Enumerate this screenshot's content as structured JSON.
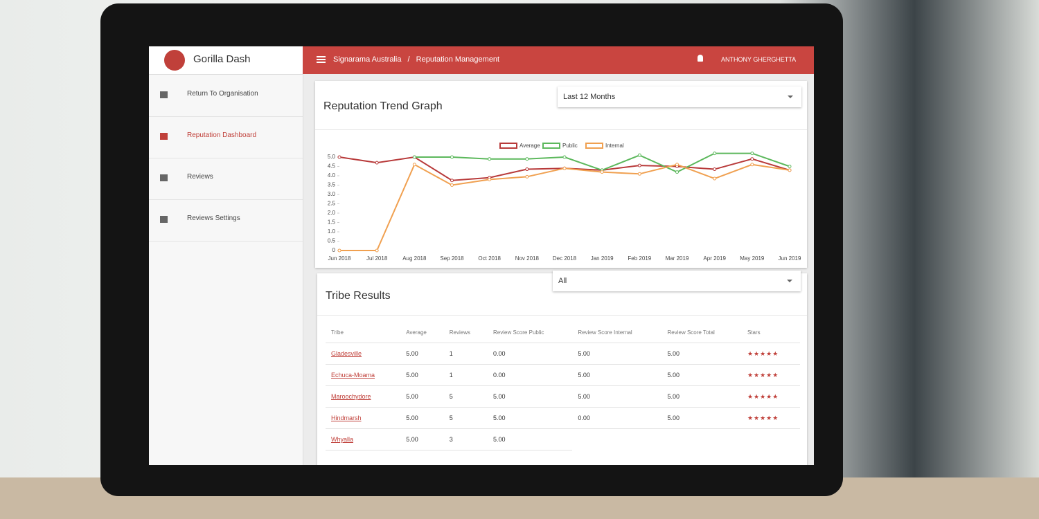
{
  "app": {
    "name": "Gorilla Dash"
  },
  "sidebar": {
    "items": [
      "Return To Organisation",
      "Reputation Dashboard",
      "Reviews",
      "Reviews Settings"
    ],
    "active": 1
  },
  "header": {
    "breadcrumb": [
      "Signarama Australia",
      "Reputation Management"
    ],
    "separator": "/",
    "user": "ANTHONY GHERGHETTA"
  },
  "chart_card": {
    "title": "Reputation Trend Graph",
    "filter": "Last 12 Months"
  },
  "chart_data": {
    "type": "line",
    "categories": [
      "Jun 2018",
      "Jul 2018",
      "Aug 2018",
      "Sep 2018",
      "Oct 2018",
      "Nov 2018",
      "Dec 2018",
      "Jan 2019",
      "Feb 2019",
      "Mar 2019",
      "Apr 2019",
      "May 2019",
      "Jun 2019"
    ],
    "series": [
      {
        "name": "Average",
        "color": "#b83a3a",
        "values": [
          5.0,
          4.7,
          5.0,
          3.75,
          3.9,
          4.35,
          4.4,
          4.3,
          4.55,
          4.5,
          4.35,
          4.9,
          4.3
        ]
      },
      {
        "name": "Public",
        "color": "#5cb85c",
        "values": [
          null,
          null,
          5.0,
          5.0,
          4.9,
          4.9,
          5.0,
          4.3,
          5.1,
          4.2,
          5.2,
          5.2,
          4.5
        ]
      },
      {
        "name": "Internal",
        "color": "#f0a050",
        "values": [
          0,
          0,
          4.6,
          3.5,
          3.8,
          3.95,
          4.4,
          4.2,
          4.1,
          4.6,
          3.85,
          4.6,
          4.3
        ]
      }
    ],
    "ylim": [
      0,
      5
    ],
    "yticks": [
      0,
      {
        "value": 0.5,
        "label": "0.5"
      },
      {
        "value": 1,
        "label": "1.0"
      },
      {
        "value": 1.5,
        "label": "1.5"
      },
      {
        "value": 2,
        "label": "2.0"
      },
      {
        "value": 2.5,
        "label": "2.5"
      },
      {
        "value": 3,
        "label": "3.0"
      },
      {
        "value": 3.5,
        "label": "3.5"
      },
      {
        "value": 4,
        "label": "4.0"
      },
      {
        "value": 4.5,
        "label": "4.5"
      },
      {
        "value": 5,
        "label": "5.0"
      }
    ],
    "legend": "top",
    "grid": false
  },
  "table": {
    "title": "Tribe Results",
    "filter": "All",
    "columns": [
      "Tribe",
      "Average",
      "Reviews",
      "Review Score Public",
      "Review Score Internal",
      "Review Score Total",
      "Stars"
    ],
    "rows": [
      [
        "Gladesville",
        "5.00",
        "1",
        "0.00",
        "5.00",
        "5.00",
        "★★★★★"
      ],
      [
        "Echuca-Moama",
        "5.00",
        "1",
        "0.00",
        "5.00",
        "5.00",
        "★★★★★"
      ],
      [
        "Maroochydore",
        "5.00",
        "5",
        "5.00",
        "5.00",
        "5.00",
        "★★★★★"
      ],
      [
        "Hindmarsh",
        "5.00",
        "5",
        "5.00",
        "0.00",
        "5.00",
        "★★★★★"
      ],
      [
        "Whyalla",
        "5.00",
        "3",
        "5.00"
      ]
    ]
  }
}
